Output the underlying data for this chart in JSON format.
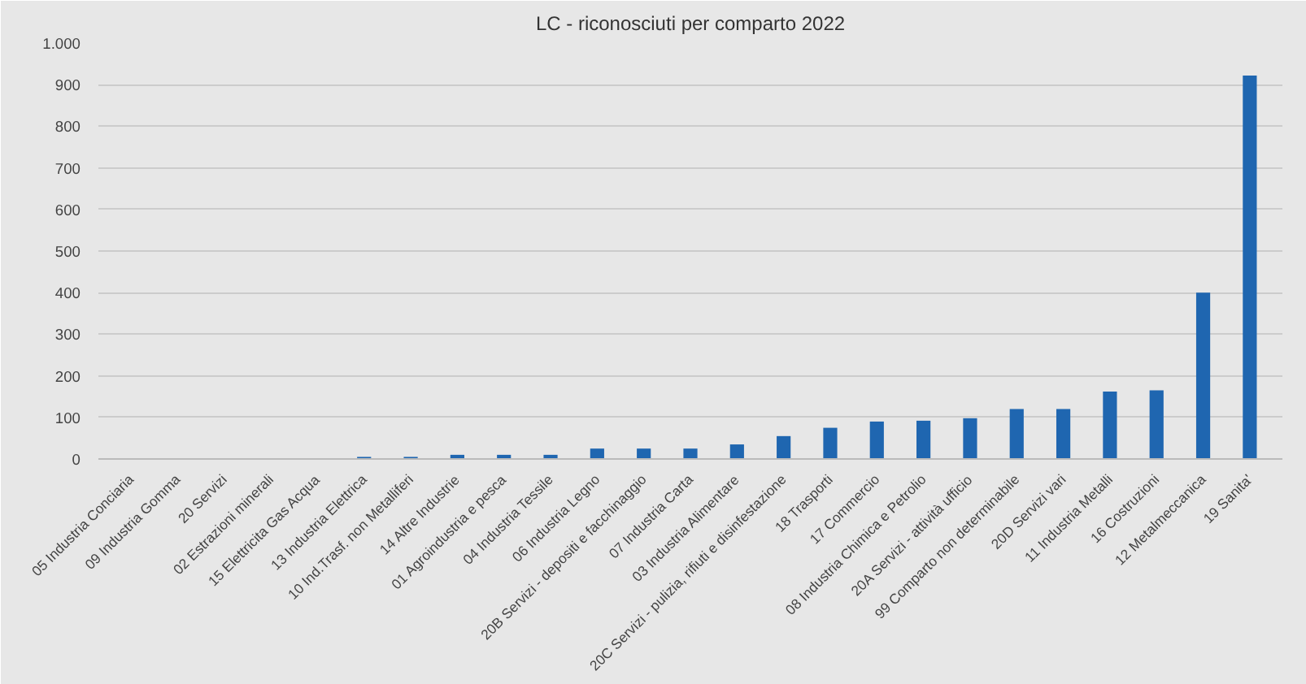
{
  "chart_data": {
    "type": "bar",
    "title": "LC - riconosciuti per comparto 2022",
    "categories": [
      "05 Industria Conciaria",
      "09 Industria Gomma",
      "20 Servizi",
      "02 Estrazioni minerali",
      "15 Elettricita Gas Acqua",
      "13 Industria Elettrica",
      "10 Ind.Trasf. non Metalliferi",
      "14 Altre Industrie",
      "01 Agroindustria e pesca",
      "04 Industria Tessile",
      "06 Industria Legno",
      "20B Servizi - depositi e facchinaggio",
      "07 Industria Carta",
      "03 Industria Alimentare",
      "20C Servizi - pulizia, rifiuti e disinfestazione",
      "18 Trasporti",
      "17 Commercio",
      "08 Industria Chimica e Petrolio",
      "20A Servizi - attività ufficio",
      "99 Comparto non determinabile",
      "20D Servizi vari",
      "11 Industria Metalli",
      "16 Costruzioni",
      "12 Metalmeccanica",
      "19 Sanita'"
    ],
    "values": [
      0,
      0,
      0,
      0,
      0,
      5,
      5,
      10,
      10,
      10,
      25,
      25,
      25,
      35,
      55,
      75,
      90,
      92,
      98,
      120,
      120,
      162,
      165,
      400,
      922
    ],
    "color": "#1f66b0",
    "ylim": [
      0,
      1000
    ],
    "yticks": [
      0,
      100,
      200,
      300,
      400,
      500,
      600,
      700,
      800,
      900,
      {
        "value": 1000,
        "label": "1.000"
      }
    ],
    "grid": "y"
  }
}
